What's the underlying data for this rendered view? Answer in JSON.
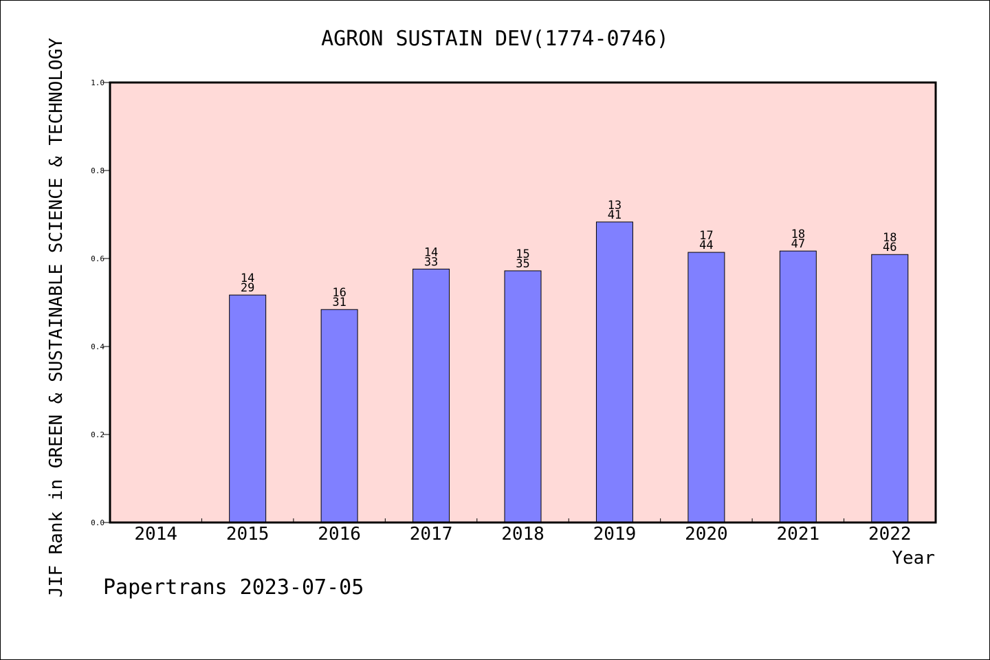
{
  "chart_data": {
    "type": "bar",
    "title": "AGRON SUSTAIN DEV(1774-0746)",
    "xlabel": "Year",
    "ylabel": "JIF Rank in GREEN & SUSTAINABLE SCIENCE & TECHNOLOGY",
    "ylim": [
      0,
      1.0
    ],
    "yticks": [
      "0.0",
      "0.2",
      "0.4",
      "0.6",
      "0.8",
      "1.0"
    ],
    "categories": [
      "2014",
      "2015",
      "2016",
      "2017",
      "2018",
      "2019",
      "2020",
      "2021",
      "2022"
    ],
    "values": [
      null,
      0.517,
      0.484,
      0.576,
      0.572,
      0.683,
      0.614,
      0.617,
      0.609
    ],
    "rank_labels": [
      null,
      {
        "rank": "14",
        "total": "29"
      },
      {
        "rank": "16",
        "total": "31"
      },
      {
        "rank": "14",
        "total": "33"
      },
      {
        "rank": "15",
        "total": "35"
      },
      {
        "rank": "13",
        "total": "41"
      },
      {
        "rank": "17",
        "total": "44"
      },
      {
        "rank": "18",
        "total": "47"
      },
      {
        "rank": "18",
        "total": "46"
      }
    ],
    "colors": {
      "plot_background": "#ffdad8",
      "bar_fill": "#8080ff",
      "bar_stroke": "#000000"
    },
    "grid": false
  },
  "footer": {
    "text": "Papertrans 2023-07-05"
  }
}
